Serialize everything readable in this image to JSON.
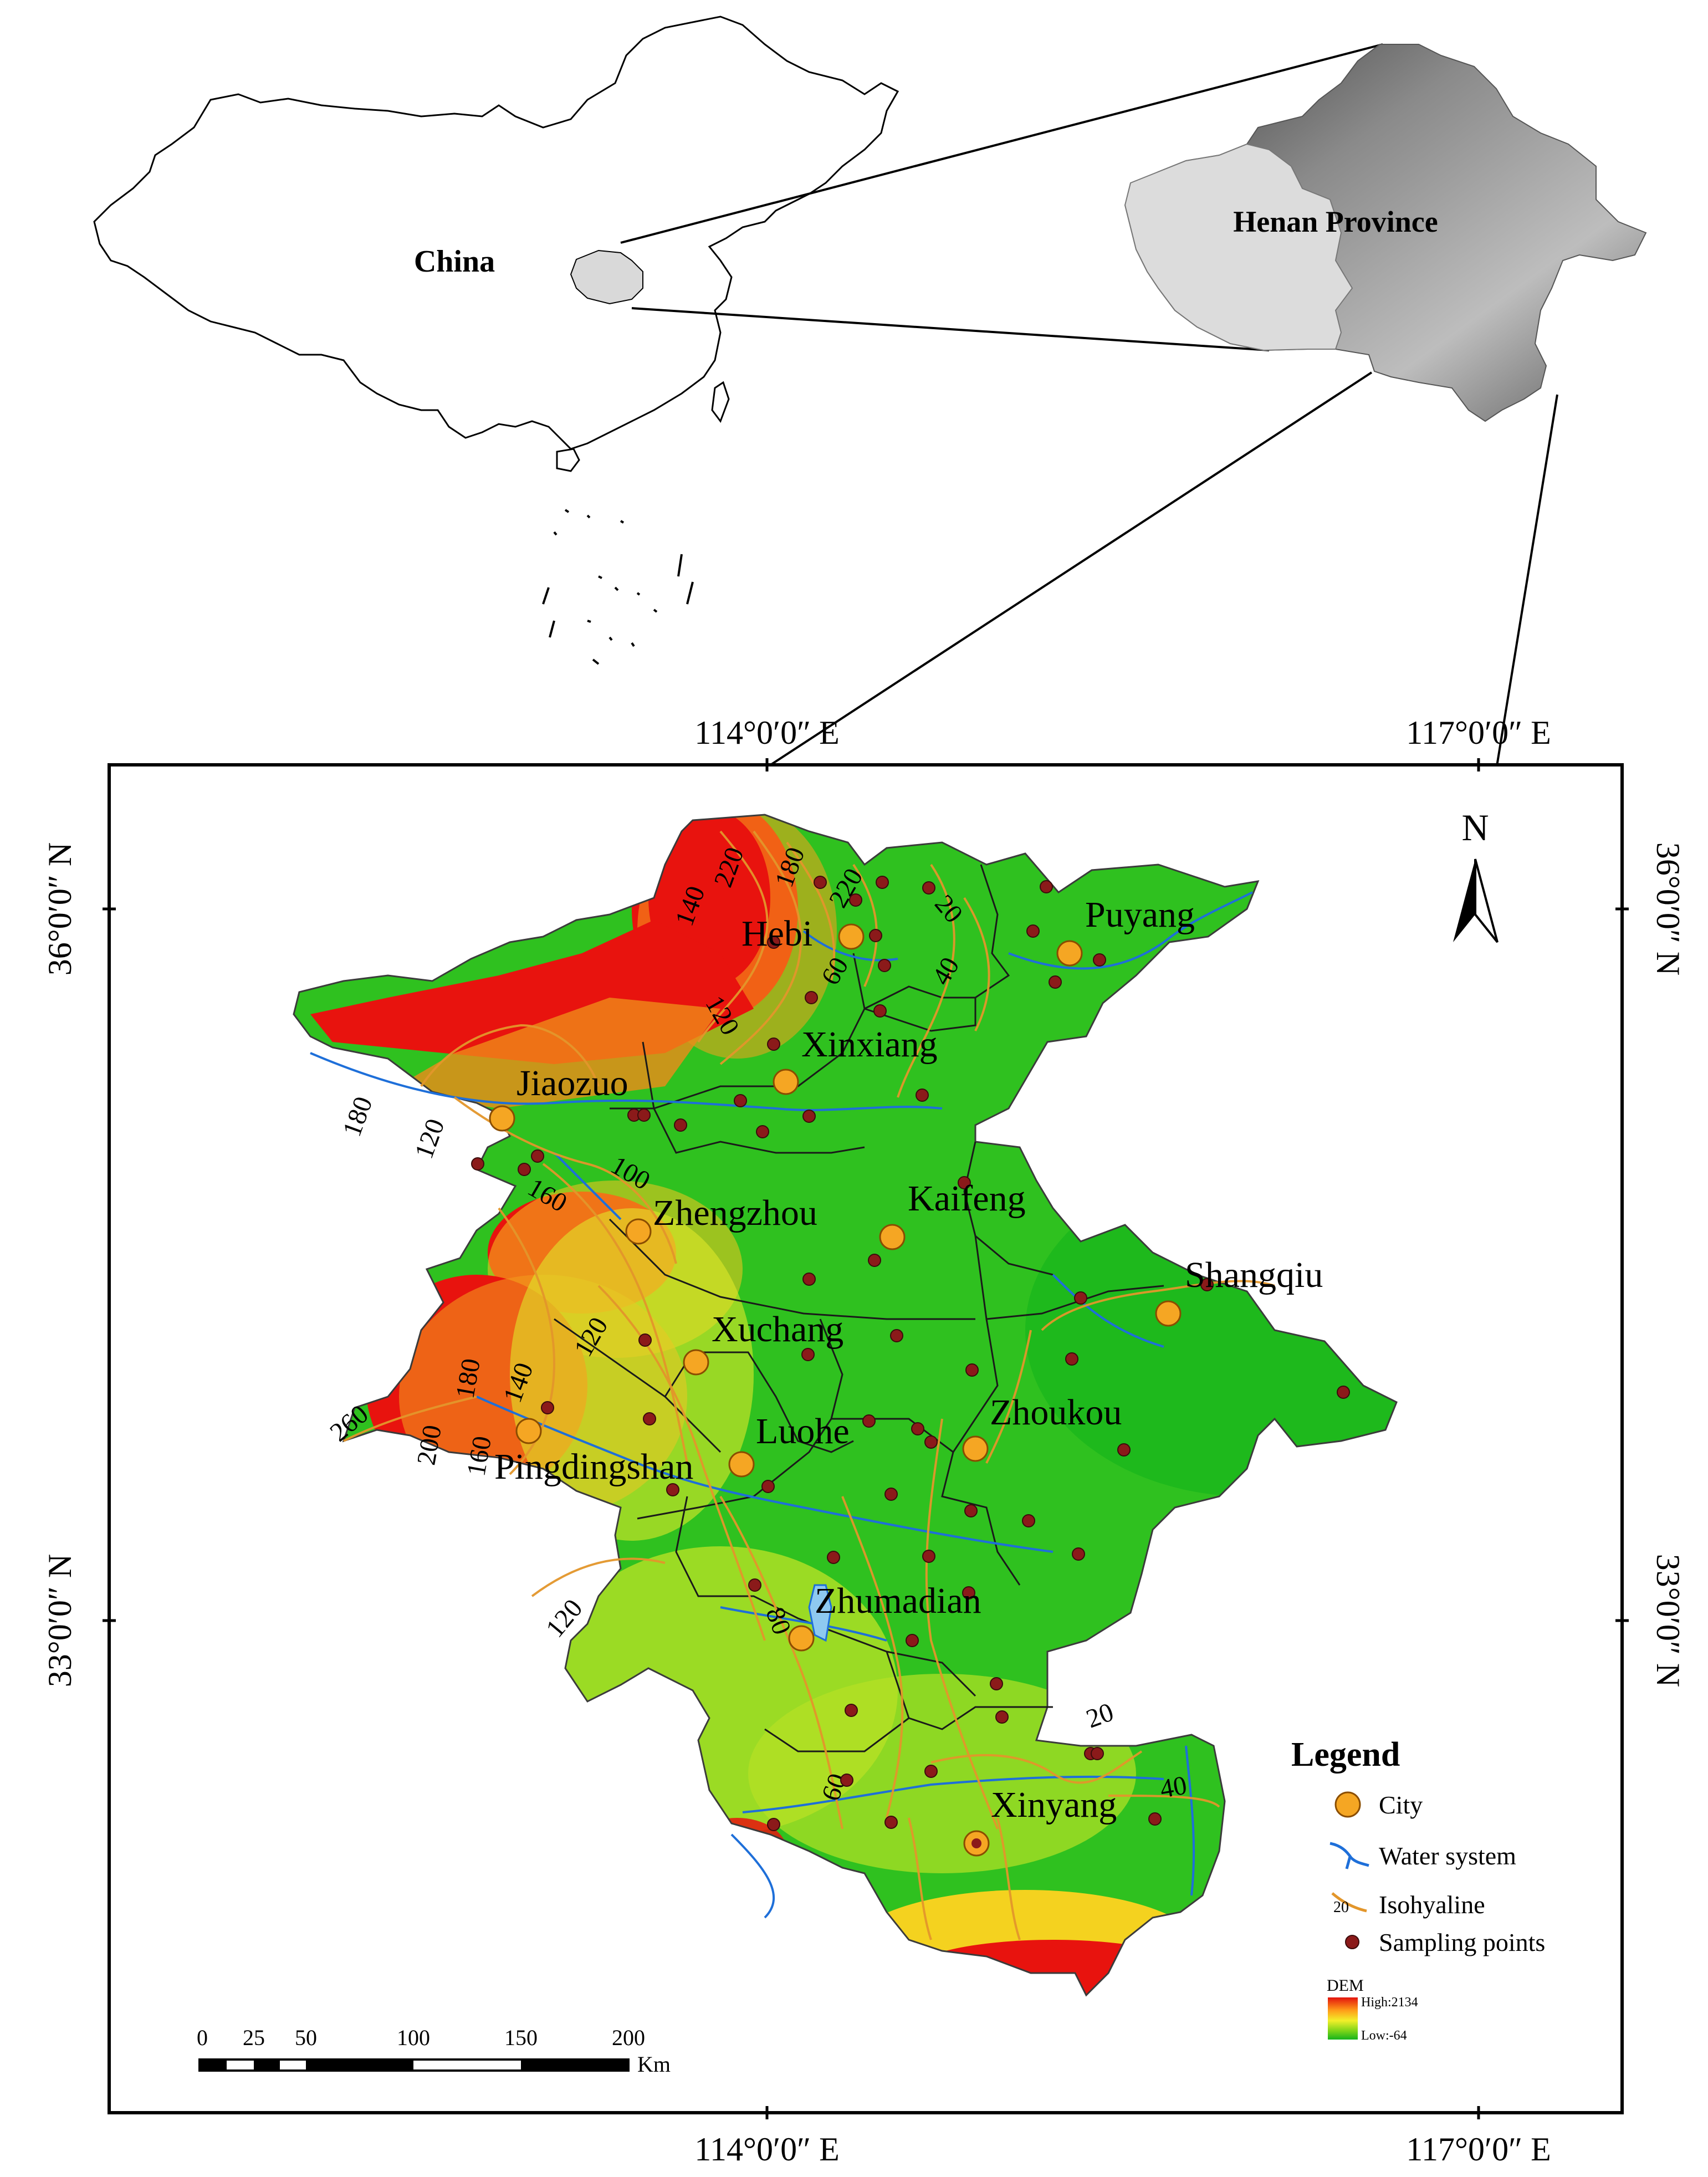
{
  "inset": {
    "china_label": "China",
    "henan_label": "Henan Province"
  },
  "graticule": {
    "lon_labels": [
      "114°0′0″ E",
      "117°0′0″ E"
    ],
    "lat_labels": [
      "36°0′0″ N",
      "33°0′0″ N"
    ]
  },
  "cities": [
    {
      "name": "Hebi"
    },
    {
      "name": "Puyang"
    },
    {
      "name": "Xinxiang"
    },
    {
      "name": "Jiaozuo"
    },
    {
      "name": "Zhengzhou"
    },
    {
      "name": "Kaifeng"
    },
    {
      "name": "Shangqiu"
    },
    {
      "name": "Xuchang"
    },
    {
      "name": "Zhoukou"
    },
    {
      "name": "Luohe"
    },
    {
      "name": "Pingdingshan"
    },
    {
      "name": "Zhumadian"
    },
    {
      "name": "Xinyang"
    }
  ],
  "isohyet_labels": [
    "220",
    "180",
    "140",
    "120",
    "60",
    "20",
    "40",
    "180",
    "120",
    "100",
    "160",
    "120",
    "140",
    "180",
    "200",
    "160",
    "260",
    "80",
    "60",
    "120",
    "20",
    "40",
    "220"
  ],
  "north_arrow": {
    "label": "N"
  },
  "legend": {
    "title": "Legend",
    "items": [
      {
        "label": "City",
        "symbol": "orange-circle",
        "color": "#f5a623"
      },
      {
        "label": "Water system",
        "symbol": "water-icon",
        "color": "#1e6fd9"
      },
      {
        "label": "Isohyaline",
        "symbol": "isohyet-icon",
        "color": "#e3962b",
        "sample": "20"
      },
      {
        "label": "Sampling points",
        "symbol": "brown-dot",
        "color": "#8b1a1a"
      }
    ],
    "dem": {
      "title": "DEM",
      "high": "High:2134",
      "low": "Low:-64"
    }
  },
  "scale_bar": {
    "ticks": [
      "0",
      "25",
      "50",
      "100",
      "150",
      "200"
    ],
    "unit": "Km"
  },
  "colors": {
    "land_green": "#2fc11f",
    "highland_red": "#e8130e",
    "city": "#f5a623",
    "sampling": "#8b1a1a",
    "isohyet": "#e3962b"
  }
}
